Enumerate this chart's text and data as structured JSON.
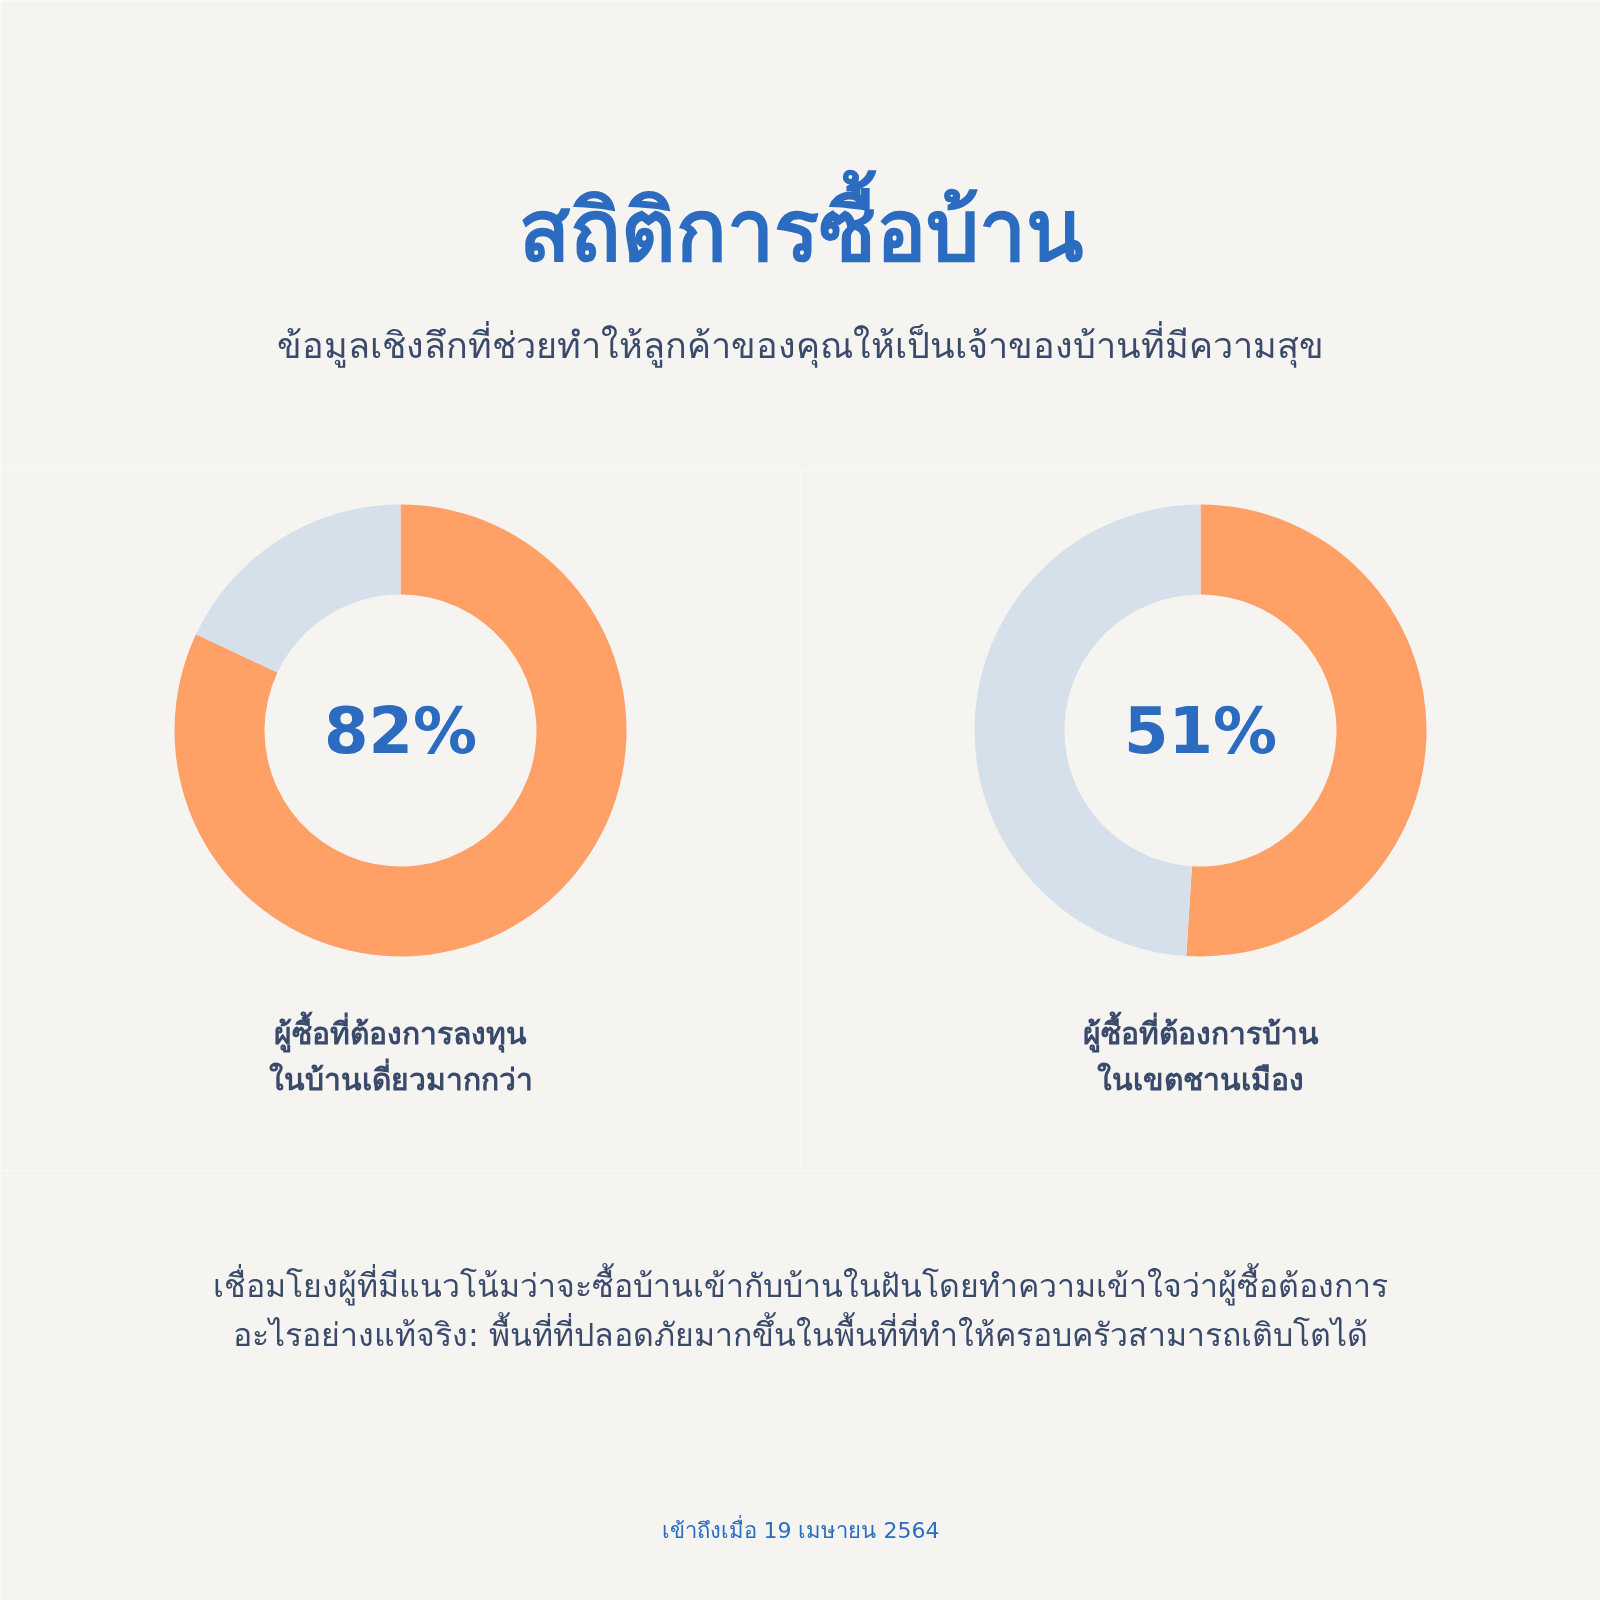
{
  "chart_data": [
    {
      "type": "other",
      "title": "สถิติการซื้อบ้าน",
      "subtitle": "ข้อมูลเชิงลึกที่ช่วยทำให้ลูกค้าของคุณให้เป็นเจ้าของบ้านที่มีความสุข"
    },
    {
      "type": "donut",
      "title": "ผู้ซื้อที่ต้องการลงทุน\nในบ้านเดี่ยวมากกว่า",
      "categories": [
        null,
        null
      ],
      "values": [
        82,
        18
      ],
      "colors": [
        "#ffa066",
        "#d6e0ea"
      ],
      "annotations": [
        "82%"
      ]
    },
    {
      "type": "donut",
      "title": "ผู้ซื้อที่ต้องการบ้าน\nในเขตชานเมือง",
      "categories": [
        null,
        null
      ],
      "values": [
        51,
        49
      ],
      "colors": [
        "#ffa066",
        "#d6e0ea"
      ],
      "annotations": [
        "51%"
      ]
    },
    {
      "type": "other",
      "annotations": [
        "เชื่อมโยงผู้ที่มีแนวโน้มว่าจะซื้อบ้านเข้ากับบ้านในฝันโดยทำความเข้าใจว่าผู้ซื้อต้องการ\nอะไรอย่างแท้จริง: พื้นที่ที่ปลอดภัยมากขึ้นในพื้นที่ที่ทำให้ครอบครัวสามารถเติบโตได้",
        "เข้าถึงเมื่อ 19 เมษายน 2564"
      ]
    }
  ]
}
